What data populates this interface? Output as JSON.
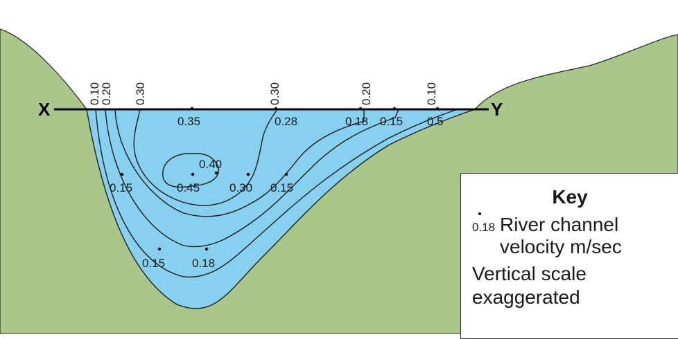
{
  "endpoints": {
    "left": "X",
    "right": "Y"
  },
  "surface_labels": [
    "0.10",
    "0.20",
    "0.30",
    "0.30",
    "0.20",
    "0.10"
  ],
  "velocity_labels": [
    "0.35",
    "0.28",
    "0.18",
    "0.15",
    "0.5",
    "0.40",
    "0.15",
    "0.45",
    "0.30",
    "0.15",
    "0.15",
    "0.18"
  ],
  "key": {
    "title": "Key",
    "sample_value": "0.18",
    "description": "River channel velocity m/sec",
    "note": "Vertical scale exaggerated"
  },
  "colors": {
    "land": "#a9c78a",
    "water": "#87d0ef",
    "lines": "#1a1a1a"
  }
}
